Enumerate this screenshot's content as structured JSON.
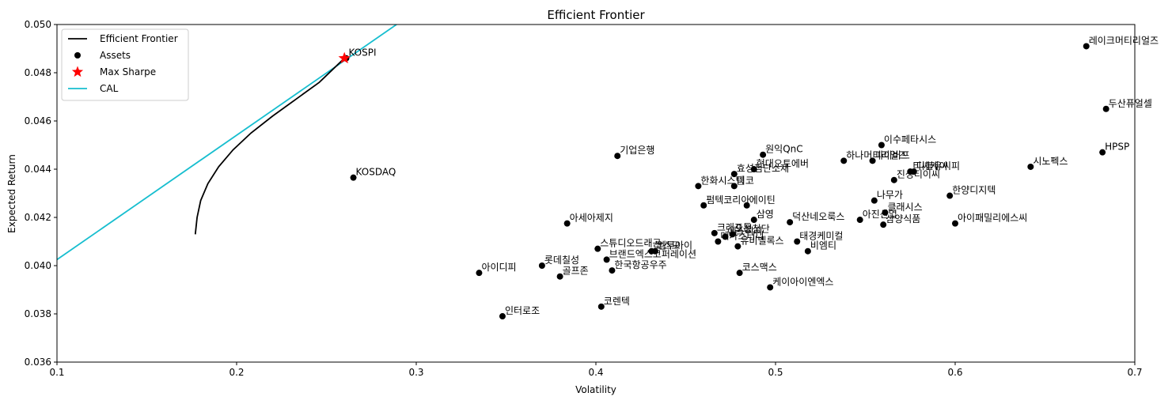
{
  "chart_data": {
    "type": "scatter",
    "title": "Efficient Frontier",
    "xlabel": "Volatility",
    "ylabel": "Expected Return",
    "xlim": [
      0.1,
      0.7
    ],
    "ylim": [
      0.036,
      0.05
    ],
    "x_ticks": [
      "0.1",
      "0.2",
      "0.3",
      "0.4",
      "0.5",
      "0.6",
      "0.7"
    ],
    "y_ticks": [
      "0.036",
      "0.038",
      "0.040",
      "0.042",
      "0.044",
      "0.046",
      "0.048",
      "0.050"
    ],
    "grid": false,
    "legend_placement": "top-left",
    "legend": [
      {
        "label": "Efficient Frontier",
        "kind": "line",
        "color": "#000000"
      },
      {
        "label": "Assets",
        "kind": "dot",
        "color": "#000000"
      },
      {
        "label": "Max Sharpe",
        "kind": "star",
        "color": "#ff0000"
      },
      {
        "label": "CAL",
        "kind": "line",
        "color": "#17becf"
      }
    ],
    "frontier": {
      "name": "Efficient Frontier",
      "color": "#000000",
      "x": [
        0.177,
        0.178,
        0.18,
        0.184,
        0.19,
        0.198,
        0.208,
        0.22,
        0.233,
        0.246,
        0.26
      ],
      "y": [
        0.0413,
        0.042,
        0.0427,
        0.0434,
        0.0441,
        0.0448,
        0.0455,
        0.0462,
        0.0469,
        0.0476,
        0.0486
      ]
    },
    "cal": {
      "name": "CAL",
      "color": "#17becf",
      "x": [
        0.1,
        0.289
      ],
      "y": [
        0.04025,
        0.05
      ]
    },
    "max_sharpe": {
      "name": "Max Sharpe",
      "x": 0.26,
      "y": 0.0486,
      "color": "#ff0000"
    },
    "assets": [
      {
        "name": "KOSPI",
        "x": 0.261,
        "y": 0.0486
      },
      {
        "name": "KOSDAQ",
        "x": 0.265,
        "y": 0.04365
      },
      {
        "name": "레이크머티리얼즈",
        "x": 0.673,
        "y": 0.0491
      },
      {
        "name": "두산퓨얼셀",
        "x": 0.684,
        "y": 0.0465
      },
      {
        "name": "HPSP",
        "x": 0.682,
        "y": 0.0447
      },
      {
        "name": "시노펙스",
        "x": 0.642,
        "y": 0.0441
      },
      {
        "name": "이수페타시스",
        "x": 0.559,
        "y": 0.045
      },
      {
        "name": "하나머티리얼즈",
        "x": 0.538,
        "y": 0.04435
      },
      {
        "name": "파이버프",
        "x": 0.554,
        "y": 0.04435
      },
      {
        "name": "티씨케이",
        "x": 0.575,
        "y": 0.0439
      },
      {
        "name": "디블유씨피",
        "x": 0.577,
        "y": 0.0439
      },
      {
        "name": "진성티이씨",
        "x": 0.566,
        "y": 0.04355
      },
      {
        "name": "한양디지텍",
        "x": 0.597,
        "y": 0.0429
      },
      {
        "name": "나무가",
        "x": 0.555,
        "y": 0.0427
      },
      {
        "name": "클래시스",
        "x": 0.561,
        "y": 0.0422
      },
      {
        "name": "아진산업",
        "x": 0.547,
        "y": 0.0419
      },
      {
        "name": "삼양식품",
        "x": 0.56,
        "y": 0.0417
      },
      {
        "name": "아이패밀리에스씨",
        "x": 0.6,
        "y": 0.04175
      },
      {
        "name": "원익QnC",
        "x": 0.493,
        "y": 0.0446
      },
      {
        "name": "현대오토에버",
        "x": 0.488,
        "y": 0.044
      },
      {
        "name": "효성첨단소재",
        "x": 0.477,
        "y": 0.0438
      },
      {
        "name": "한화시스템",
        "x": 0.457,
        "y": 0.0433
      },
      {
        "name": "미코",
        "x": 0.477,
        "y": 0.0433
      },
      {
        "name": "기업은행",
        "x": 0.412,
        "y": 0.04455
      },
      {
        "name": "펌텍코리아",
        "x": 0.46,
        "y": 0.0425
      },
      {
        "name": "에이틴",
        "x": 0.484,
        "y": 0.0425
      },
      {
        "name": "삼영",
        "x": 0.488,
        "y": 0.0419
      },
      {
        "name": "덕산네오룩스",
        "x": 0.508,
        "y": 0.0418
      },
      {
        "name": "크래프톤",
        "x": 0.466,
        "y": 0.04135
      },
      {
        "name": "에스피지",
        "x": 0.472,
        "y": 0.0412
      },
      {
        "name": "오성첨단",
        "x": 0.476,
        "y": 0.0413
      },
      {
        "name": "메가스터디",
        "x": 0.468,
        "y": 0.041
      },
      {
        "name": "유비벨록스",
        "x": 0.479,
        "y": 0.0408
      },
      {
        "name": "태경케미컬",
        "x": 0.512,
        "y": 0.041
      },
      {
        "name": "비엠티",
        "x": 0.518,
        "y": 0.0406
      },
      {
        "name": "아세아제지",
        "x": 0.384,
        "y": 0.04175
      },
      {
        "name": "스튜디오드래곤",
        "x": 0.401,
        "y": 0.0407
      },
      {
        "name": "코스모",
        "x": 0.431,
        "y": 0.0406
      },
      {
        "name": "엠투아이",
        "x": 0.433,
        "y": 0.0406
      },
      {
        "name": "브랜드엑스코퍼레이션",
        "x": 0.406,
        "y": 0.04025
      },
      {
        "name": "한국항공우주",
        "x": 0.409,
        "y": 0.0398
      },
      {
        "name": "롯데칠성",
        "x": 0.37,
        "y": 0.04
      },
      {
        "name": "골프존",
        "x": 0.38,
        "y": 0.03955
      },
      {
        "name": "아이디피",
        "x": 0.335,
        "y": 0.0397
      },
      {
        "name": "인터로조",
        "x": 0.348,
        "y": 0.0379
      },
      {
        "name": "코렌텍",
        "x": 0.403,
        "y": 0.0383
      },
      {
        "name": "코스맥스",
        "x": 0.48,
        "y": 0.0397
      },
      {
        "name": "케이아이엔엑스",
        "x": 0.497,
        "y": 0.0391
      }
    ]
  }
}
